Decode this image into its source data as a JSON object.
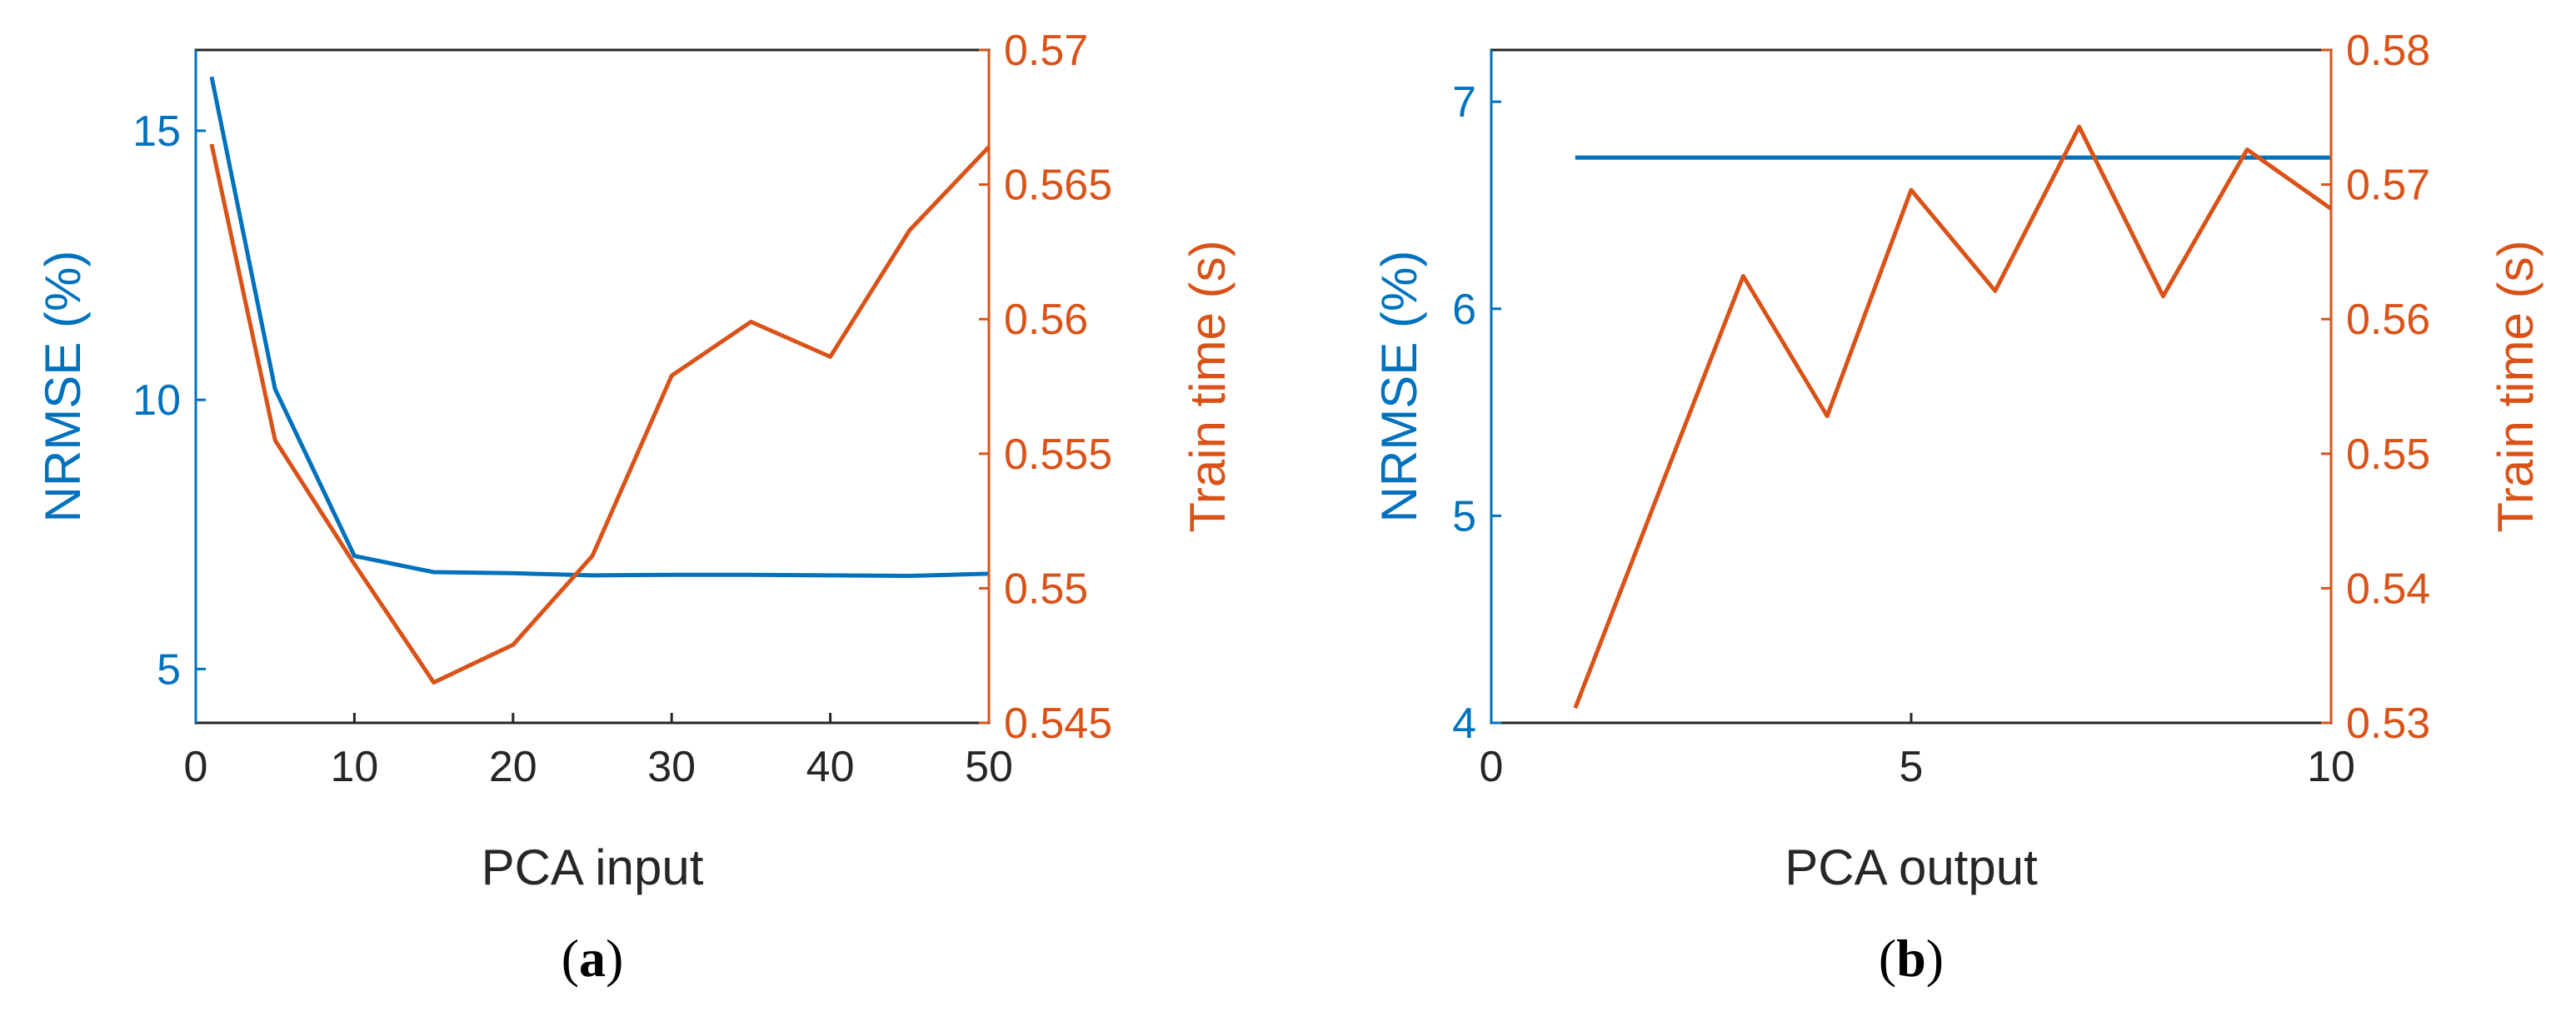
{
  "colors": {
    "left_axis": "#0072BD",
    "right_axis": "#D95319",
    "axis_dark": "#262626",
    "background": "#ffffff"
  },
  "chart_data": [
    {
      "type": "line",
      "panel_label": {
        "open": "(",
        "letter": "a",
        "close": ")"
      },
      "xlabel": "PCA input",
      "ylabel_left": "NRMSE (%)",
      "ylabel_right": "Train time (s)",
      "xlim": [
        0,
        50
      ],
      "ylim_left": [
        4,
        16.5
      ],
      "ylim_right": [
        0.545,
        0.57
      ],
      "x_ticks": [
        "0",
        "10",
        "20",
        "30",
        "40",
        "50"
      ],
      "y_ticks_left": [
        "5",
        "10",
        "15"
      ],
      "y_ticks_right": [
        "0.545",
        "0.55",
        "0.555",
        "0.56",
        "0.565",
        "0.57"
      ],
      "grid": false,
      "series": [
        {
          "axis": "left",
          "x": [
            1,
            5,
            10,
            15,
            20,
            25,
            30,
            35,
            40,
            45,
            50
          ],
          "values": [
            16.0,
            10.2,
            7.1,
            6.8,
            6.78,
            6.74,
            6.75,
            6.75,
            6.74,
            6.73,
            6.77
          ]
        },
        {
          "axis": "right",
          "x": [
            1,
            5,
            10,
            15,
            20,
            25,
            30,
            35,
            40,
            45,
            50
          ],
          "values": [
            0.5665,
            0.5555,
            0.5509,
            0.5465,
            0.5479,
            0.5512,
            0.5579,
            0.5599,
            0.5586,
            0.5633,
            0.5664
          ]
        }
      ]
    },
    {
      "type": "line",
      "panel_label": {
        "open": "(",
        "letter": "b",
        "close": ")"
      },
      "xlabel": "PCA output",
      "ylabel_left": "NRMSE (%)",
      "ylabel_right": "Train time (s)",
      "xlim": [
        0,
        10
      ],
      "ylim_left": [
        4,
        7.25
      ],
      "ylim_right": [
        0.53,
        0.58
      ],
      "x_ticks": [
        "0",
        "5",
        "10"
      ],
      "y_ticks_left": [
        "4",
        "5",
        "6",
        "7"
      ],
      "y_ticks_right": [
        "0.53",
        "0.54",
        "0.55",
        "0.56",
        "0.57",
        "0.58"
      ],
      "grid": false,
      "series": [
        {
          "axis": "left",
          "x": [
            1,
            2,
            3,
            4,
            5,
            6,
            7,
            8,
            9,
            10
          ],
          "values": [
            6.73,
            6.73,
            6.73,
            6.73,
            6.73,
            6.73,
            6.73,
            6.73,
            6.73,
            6.73
          ]
        },
        {
          "axis": "right",
          "x": [
            1,
            2,
            3,
            4,
            5,
            6,
            7,
            8,
            9,
            10
          ],
          "values": [
            0.5311,
            0.5472,
            0.5632,
            0.5528,
            0.5696,
            0.5621,
            0.5743,
            0.5617,
            0.5726,
            0.5682
          ]
        }
      ]
    }
  ]
}
